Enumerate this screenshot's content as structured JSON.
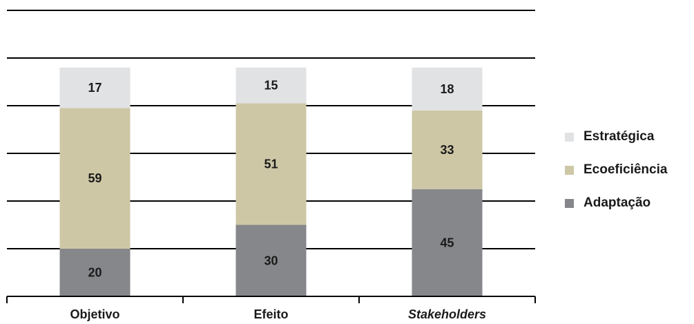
{
  "chart_data": {
    "type": "bar",
    "stacked": true,
    "categories": [
      "Objetivo",
      "Efeito",
      "Stakeholders"
    ],
    "category_italic": [
      false,
      false,
      true
    ],
    "series": [
      {
        "name": "Adaptação",
        "values": [
          20,
          30,
          45
        ],
        "color": "#86878a"
      },
      {
        "name": "Ecoeficiência",
        "values": [
          59,
          51,
          33
        ],
        "color": "#cec7a6"
      },
      {
        "name": "Estratégica",
        "values": [
          17,
          15,
          18
        ],
        "color": "#e1e2e4"
      }
    ],
    "legend_order": [
      "Estratégica",
      "Ecoeficiência",
      "Adaptação"
    ],
    "legend_position": "right",
    "ylim": [
      0,
      120
    ],
    "grid": true,
    "title": "",
    "xlabel": "",
    "ylabel": ""
  }
}
